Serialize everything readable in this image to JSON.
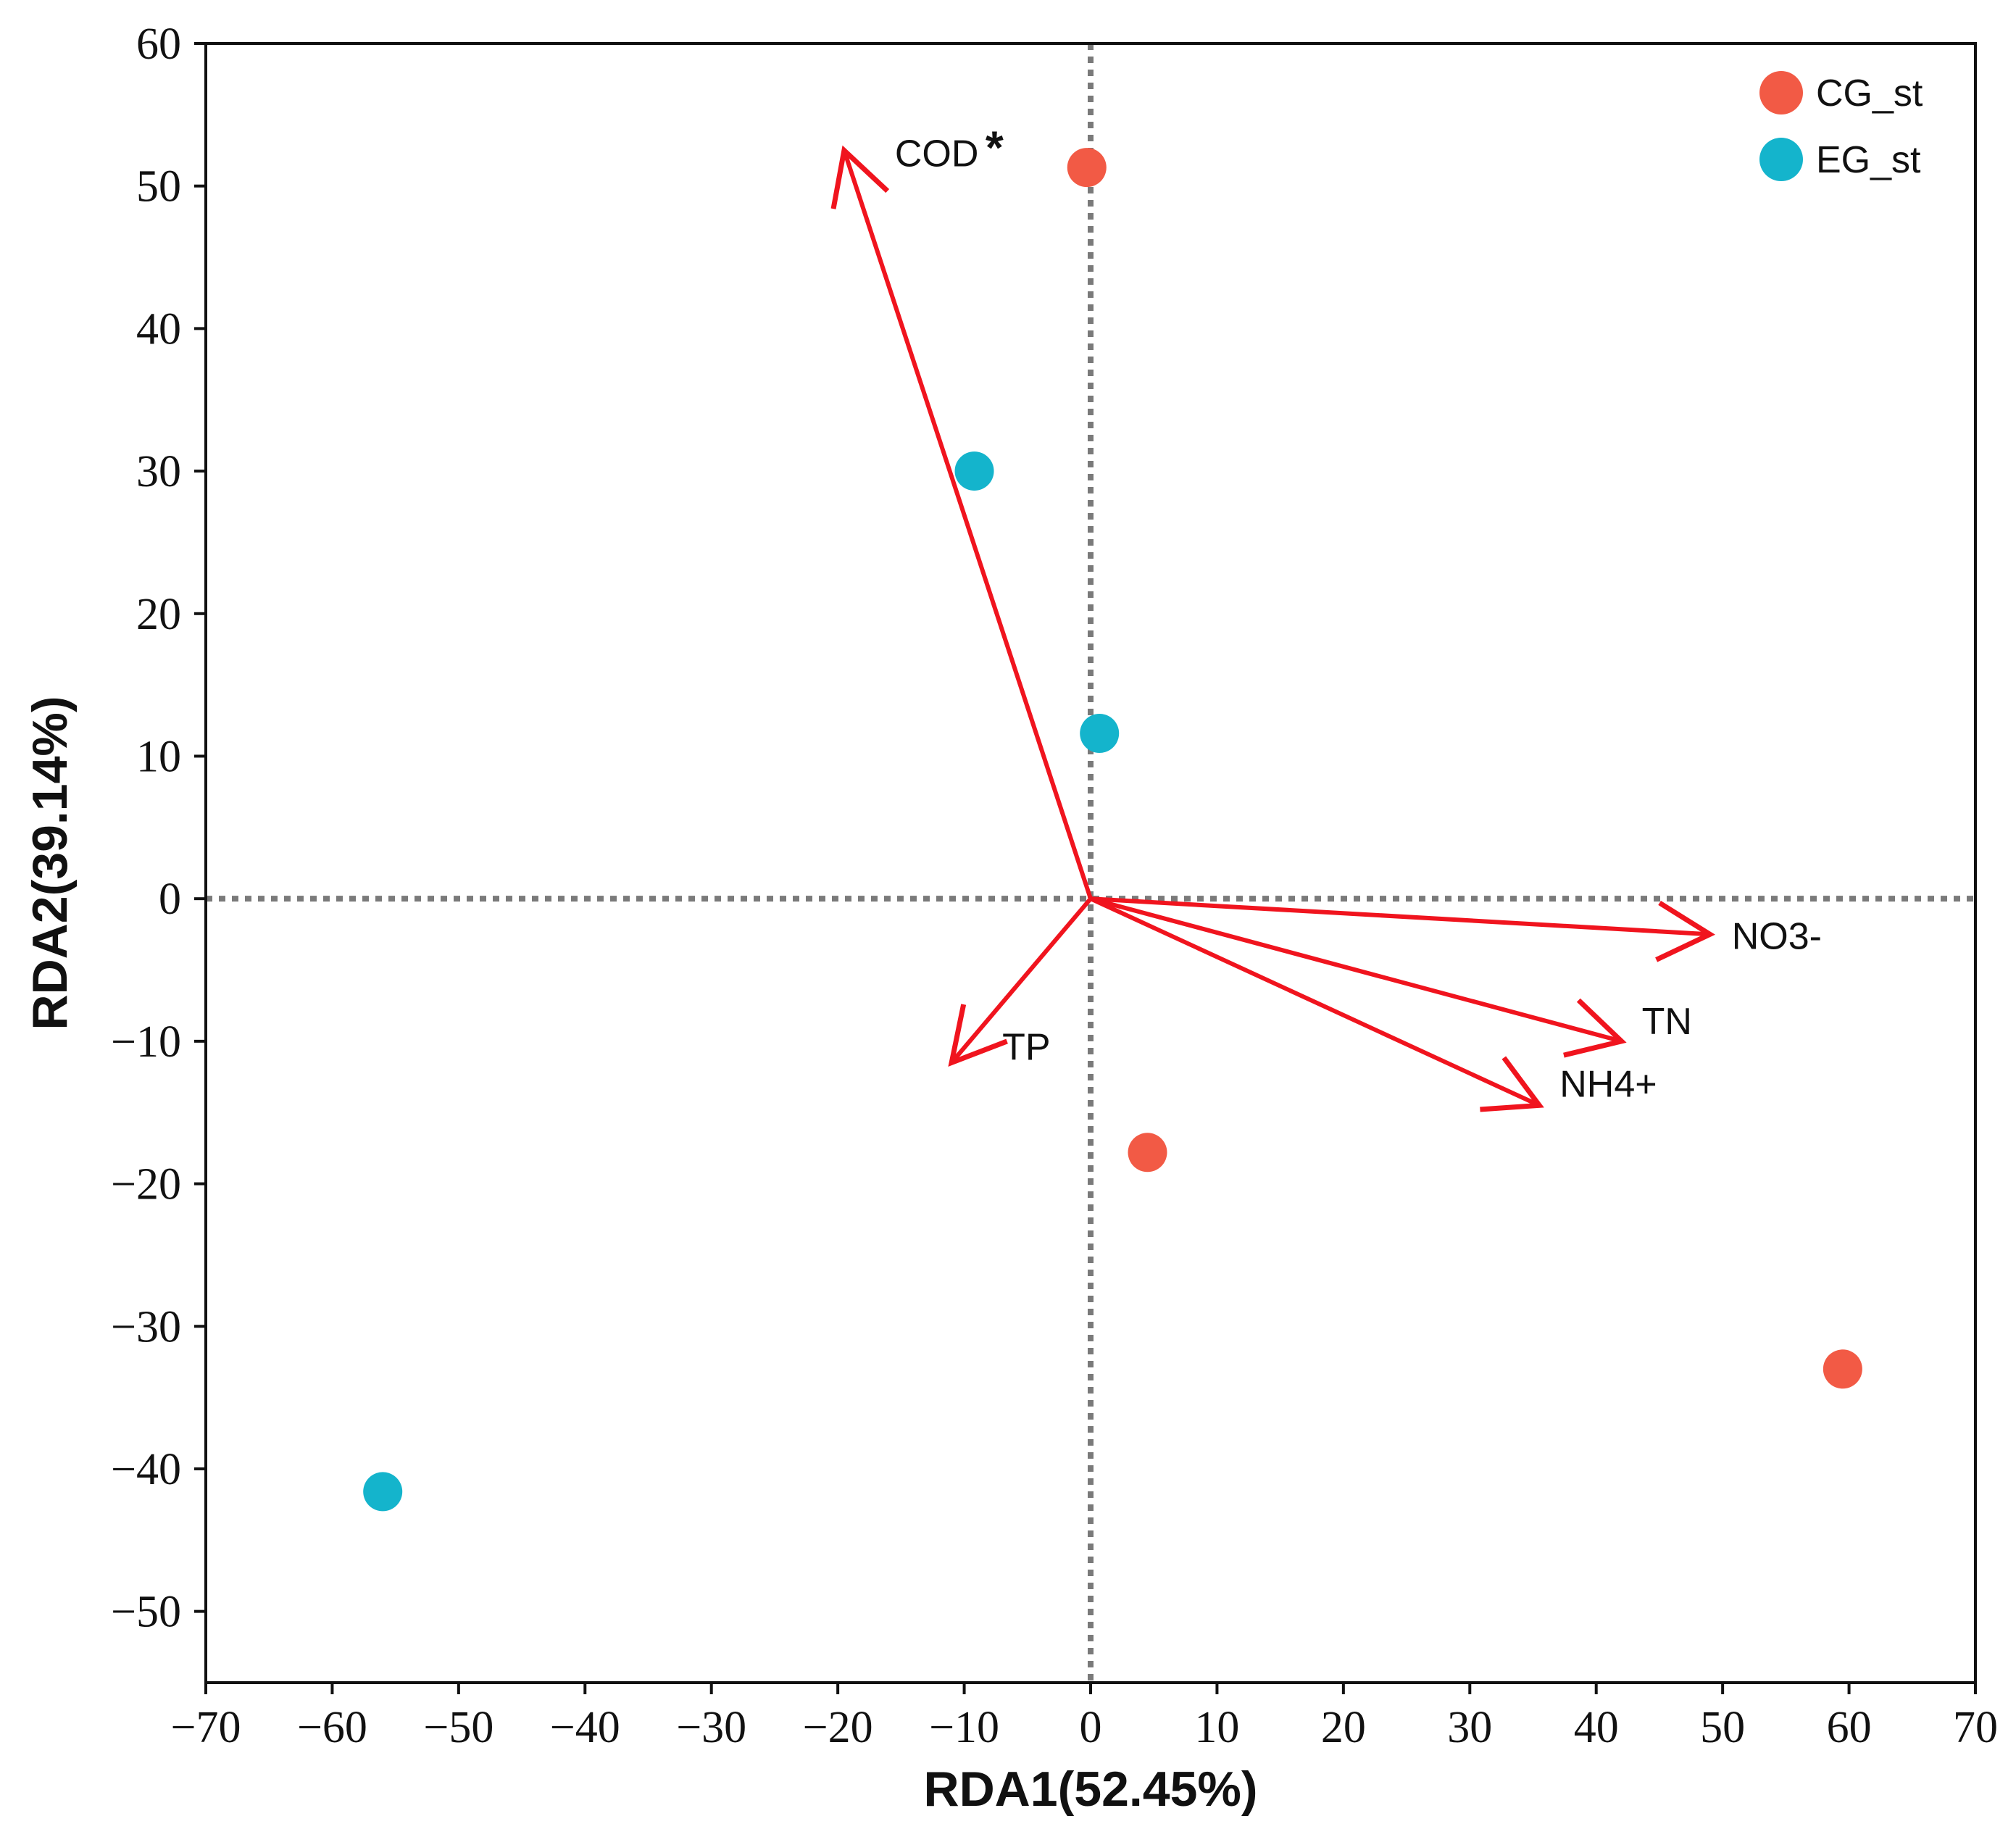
{
  "chart_data": {
    "type": "scatter",
    "subtype": "RDA biplot",
    "xlabel": "RDA1(52.45%)",
    "ylabel": "RDA2(39.14%)",
    "xlim": [
      -70,
      70
    ],
    "ylim": [
      -55,
      60
    ],
    "xticks": [
      -70,
      -60,
      -50,
      -40,
      -30,
      -20,
      -10,
      0,
      10,
      20,
      30,
      40,
      50,
      60,
      70
    ],
    "yticks": [
      -50,
      -40,
      -30,
      -20,
      -10,
      0,
      10,
      20,
      30,
      40,
      50,
      60
    ],
    "grid": false,
    "reference_lines": {
      "x": 0,
      "y": 0,
      "style": "dotted"
    },
    "legend_position": "top-right",
    "series": [
      {
        "name": "CG_st",
        "color": "#f25a45",
        "points": [
          {
            "x": -0.3,
            "y": 51.3
          },
          {
            "x": 4.5,
            "y": -17.8
          },
          {
            "x": 59.5,
            "y": -33.0
          }
        ]
      },
      {
        "name": "EG_st",
        "color": "#14b4cc",
        "points": [
          {
            "x": -9.2,
            "y": 30.0
          },
          {
            "x": 0.7,
            "y": 11.6
          },
          {
            "x": -56.0,
            "y": -41.6
          }
        ]
      }
    ],
    "vectors": [
      {
        "name": "COD",
        "x": -19.5,
        "y": 52.5,
        "significance": "*",
        "color": "#f0141e"
      },
      {
        "name": "NO3-",
        "x": 49.0,
        "y": -2.5,
        "significance": "",
        "color": "#f0141e"
      },
      {
        "name": "TN",
        "x": 42.0,
        "y": -10.0,
        "significance": "",
        "color": "#f0141e"
      },
      {
        "name": "NH4+",
        "x": 35.5,
        "y": -14.5,
        "significance": "",
        "color": "#f0141e"
      },
      {
        "name": "TP",
        "x": -11.0,
        "y": -11.5,
        "significance": "",
        "color": "#f0141e"
      }
    ]
  }
}
